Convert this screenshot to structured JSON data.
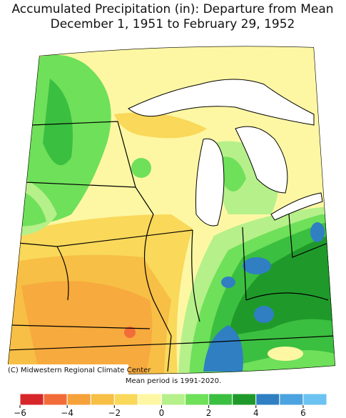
{
  "header": {
    "title_line1": "Accumulated Precipitation (in): Departure from Mean",
    "title_line2": "December 1, 1951 to February 29, 1952"
  },
  "map": {
    "credit": "(C) Midwestern Regional Climate Center",
    "note": "Mean period is 1991-2020."
  },
  "colorbar": {
    "bins": [
      -6,
      -5,
      -4,
      -3,
      -2,
      -1,
      0,
      1,
      2,
      3,
      4,
      5,
      6,
      7
    ],
    "colors": [
      "#d7262a",
      "#f26c3a",
      "#f6a13a",
      "#f7bf45",
      "#f9d85a",
      "#fdf7a3",
      "#b6f08a",
      "#6fe05a",
      "#3bbf40",
      "#1f9a2a",
      "#2f7fc2",
      "#4ba3e0",
      "#6cc2f0"
    ],
    "ticks": [
      {
        "value": -6,
        "label": "−6"
      },
      {
        "value": -4,
        "label": "−4"
      },
      {
        "value": -2,
        "label": "−2"
      },
      0,
      2,
      4,
      6
    ]
  }
}
